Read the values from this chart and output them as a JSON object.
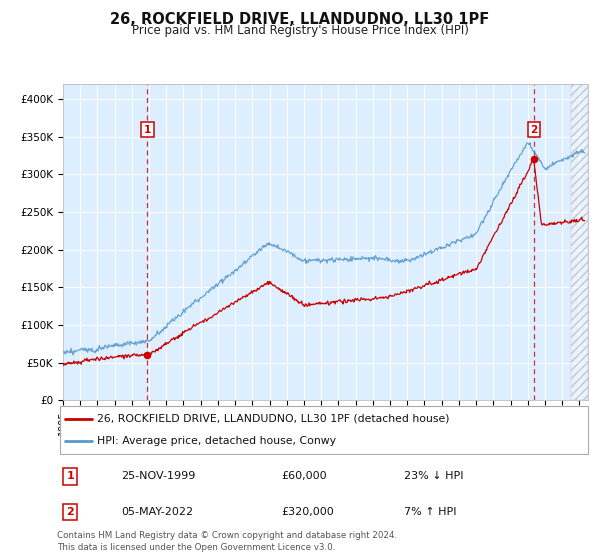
{
  "title": "26, ROCKFIELD DRIVE, LLANDUDNO, LL30 1PF",
  "subtitle": "Price paid vs. HM Land Registry's House Price Index (HPI)",
  "legend_entries": [
    "26, ROCKFIELD DRIVE, LLANDUDNO, LL30 1PF (detached house)",
    "HPI: Average price, detached house, Conwy"
  ],
  "annotation1_label": "1",
  "annotation1_date": "25-NOV-1999",
  "annotation1_price": "£60,000",
  "annotation1_hpi": "23% ↓ HPI",
  "annotation1_year": 1999.9,
  "annotation1_value": 60000,
  "annotation2_label": "2",
  "annotation2_date": "05-MAY-2022",
  "annotation2_price": "£320,000",
  "annotation2_hpi": "7% ↑ HPI",
  "annotation2_year": 2022.35,
  "annotation2_value": 320000,
  "ylim": [
    0,
    420000
  ],
  "yticks": [
    0,
    50000,
    100000,
    150000,
    200000,
    250000,
    300000,
    350000,
    400000
  ],
  "ytick_labels": [
    "£0",
    "£50K",
    "£100K",
    "£150K",
    "£200K",
    "£250K",
    "£300K",
    "£350K",
    "£400K"
  ],
  "line_color_red": "#cc0000",
  "line_color_blue": "#5599cc",
  "bg_color": "#ddeeff",
  "footer_text": "Contains HM Land Registry data © Crown copyright and database right 2024.\nThis data is licensed under the Open Government Licence v3.0.",
  "xmin": 1995,
  "xmax": 2025.5
}
